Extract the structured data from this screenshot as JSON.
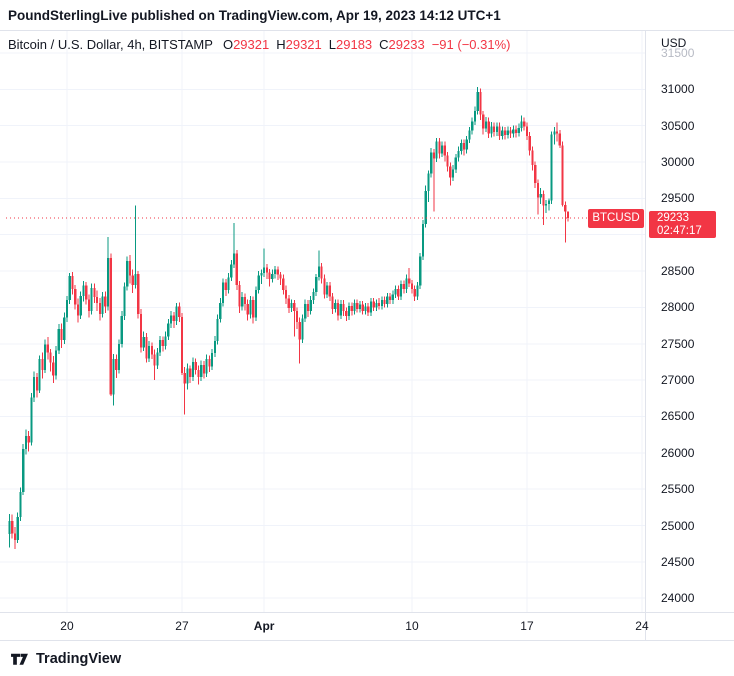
{
  "attribution": {
    "text": "PoundSterlingLive published on TradingView.com, Apr 19, 2023 14:12 UTC+1"
  },
  "legend": {
    "title": "Bitcoin / U.S. Dollar, 4h, BITSTAMP",
    "ohlc": [
      {
        "label": "O",
        "value": "29321"
      },
      {
        "label": "H",
        "value": "29321"
      },
      {
        "label": "L",
        "value": "29183"
      },
      {
        "label": "C",
        "value": "29233"
      }
    ],
    "change": "−91 (−0.31%)"
  },
  "price_scale": {
    "currency_label": "USD",
    "ticks": [
      31500,
      31000,
      30500,
      30000,
      29500,
      28500,
      28000,
      27500,
      27000,
      26500,
      26000,
      25500,
      25000,
      24500,
      24000
    ],
    "symbol_label": "BTCUSD",
    "last_price_label": "29233",
    "countdown": "02:47:17"
  },
  "time_scale": {
    "ticks": [
      {
        "label": "20",
        "index": 21,
        "bold": false
      },
      {
        "label": "27",
        "index": 63,
        "bold": false
      },
      {
        "label": "Apr",
        "index": 93,
        "bold": true
      },
      {
        "label": "10",
        "index": 147,
        "bold": false
      },
      {
        "label": "17",
        "index": 189,
        "bold": false
      },
      {
        "label": "24",
        "index": 231,
        "bold": false
      }
    ]
  },
  "footer": {
    "brand": "TradingView"
  },
  "colors": {
    "up": "#089981",
    "down": "#f23645",
    "accent_red": "#f23645",
    "text": "#131722",
    "grid": "#f0f3fa",
    "border": "#e0e3eb"
  },
  "chart_data": {
    "type": "candlestick",
    "title": "Bitcoin / U.S. Dollar, 4h, BITSTAMP",
    "interval": "4h",
    "exchange": "BITSTAMP",
    "legend_position": "top-left",
    "grid": true,
    "y_axis": {
      "label": "USD",
      "min": 24000,
      "max": 31500,
      "tick_step": 500
    },
    "x_axis": {
      "start": "Mar 16 2023 12:00 UTC",
      "interval_hours": 4,
      "labels": [
        "20",
        "27",
        "Apr",
        "10",
        "17",
        "24"
      ]
    },
    "last_price": 29233,
    "current_candle": {
      "open": 29321,
      "high": 29321,
      "low": 29183,
      "close": 29233,
      "change": -91,
      "change_pct": -0.31
    },
    "candles": [
      [
        24880,
        25160,
        24700,
        25060
      ],
      [
        25060,
        25150,
        24820,
        24890
      ],
      [
        24890,
        24980,
        24680,
        24800
      ],
      [
        24800,
        25180,
        24760,
        25120
      ],
      [
        25120,
        25520,
        25060,
        25460
      ],
      [
        25460,
        26120,
        25420,
        26050
      ],
      [
        26050,
        26320,
        25980,
        26230
      ],
      [
        26230,
        26300,
        26020,
        26140
      ],
      [
        26140,
        26820,
        26100,
        26760
      ],
      [
        26760,
        27120,
        26700,
        27040
      ],
      [
        27040,
        27100,
        26760,
        26860
      ],
      [
        26860,
        27340,
        26820,
        27290
      ],
      [
        27290,
        27380,
        27020,
        27140
      ],
      [
        27140,
        27560,
        27100,
        27490
      ],
      [
        27490,
        27590,
        27280,
        27380
      ],
      [
        27380,
        27430,
        27120,
        27240
      ],
      [
        27240,
        27330,
        26960,
        27060
      ],
      [
        27060,
        27470,
        27010,
        27410
      ],
      [
        27410,
        27770,
        27360,
        27700
      ],
      [
        27700,
        27780,
        27440,
        27550
      ],
      [
        27550,
        27930,
        27500,
        27860
      ],
      [
        27860,
        28160,
        27800,
        28100
      ],
      [
        28100,
        28470,
        28050,
        28430
      ],
      [
        28430,
        28490,
        28180,
        28250
      ],
      [
        28250,
        28310,
        27970,
        28040
      ],
      [
        28040,
        28120,
        27790,
        27890
      ],
      [
        27890,
        28220,
        27840,
        28160
      ],
      [
        28160,
        28360,
        28080,
        28300
      ],
      [
        28300,
        28350,
        28040,
        28110
      ],
      [
        28110,
        28180,
        27860,
        27950
      ],
      [
        27950,
        28330,
        27900,
        28270
      ],
      [
        28270,
        28330,
        28060,
        28140
      ],
      [
        28140,
        28230,
        27950,
        28060
      ],
      [
        28060,
        28130,
        27820,
        27910
      ],
      [
        27910,
        28210,
        27860,
        28150
      ],
      [
        28150,
        28220,
        27920,
        28010
      ],
      [
        28010,
        28970,
        27960,
        28680
      ],
      [
        28680,
        28740,
        26780,
        26800
      ],
      [
        26800,
        27360,
        26650,
        27290
      ],
      [
        27290,
        27350,
        27030,
        27140
      ],
      [
        27140,
        27560,
        27090,
        27500
      ],
      [
        27500,
        27950,
        27450,
        27880
      ],
      [
        27880,
        28340,
        27830,
        28290
      ],
      [
        28290,
        28700,
        28230,
        28640
      ],
      [
        28640,
        28720,
        28330,
        28440
      ],
      [
        28440,
        28520,
        28200,
        28310
      ],
      [
        28310,
        29400,
        28260,
        28460
      ],
      [
        28460,
        28500,
        27850,
        27910
      ],
      [
        27910,
        27980,
        27380,
        27450
      ],
      [
        27450,
        27670,
        27400,
        27590
      ],
      [
        27590,
        27650,
        27240,
        27300
      ],
      [
        27300,
        27540,
        27250,
        27470
      ],
      [
        27470,
        27520,
        27290,
        27350
      ],
      [
        27350,
        27420,
        27000,
        27200
      ],
      [
        27200,
        27440,
        27150,
        27380
      ],
      [
        27380,
        27610,
        27330,
        27550
      ],
      [
        27550,
        27600,
        27390,
        27470
      ],
      [
        27470,
        27670,
        27420,
        27600
      ],
      [
        27600,
        27840,
        27550,
        27780
      ],
      [
        27780,
        27950,
        27720,
        27890
      ],
      [
        27890,
        27940,
        27720,
        27810
      ],
      [
        27810,
        28060,
        27760,
        28010
      ],
      [
        28010,
        28070,
        27800,
        27870
      ],
      [
        27870,
        27920,
        27070,
        27100
      ],
      [
        27100,
        27180,
        26530,
        26950
      ],
      [
        26950,
        27230,
        26870,
        27160
      ],
      [
        27160,
        27200,
        26960,
        27040
      ],
      [
        27040,
        27310,
        26990,
        27250
      ],
      [
        27250,
        27300,
        27080,
        27140
      ],
      [
        27140,
        27200,
        26940,
        27040
      ],
      [
        27040,
        27270,
        26990,
        27210
      ],
      [
        27210,
        27260,
        27020,
        27090
      ],
      [
        27090,
        27350,
        27040,
        27290
      ],
      [
        27290,
        27340,
        27110,
        27190
      ],
      [
        27190,
        27430,
        27140,
        27370
      ],
      [
        27370,
        27610,
        27320,
        27540
      ],
      [
        27540,
        27900,
        27490,
        27840
      ],
      [
        27840,
        28130,
        27790,
        28060
      ],
      [
        28060,
        28400,
        28010,
        28340
      ],
      [
        28340,
        28390,
        28160,
        28240
      ],
      [
        28240,
        28470,
        28190,
        28410
      ],
      [
        28410,
        28650,
        28360,
        28590
      ],
      [
        28590,
        29160,
        28540,
        28740
      ],
      [
        28740,
        28790,
        28240,
        28310
      ],
      [
        28310,
        28360,
        27920,
        28010
      ],
      [
        28010,
        28210,
        27960,
        28140
      ],
      [
        28140,
        28190,
        27960,
        28050
      ],
      [
        28050,
        28110,
        27820,
        27900
      ],
      [
        27900,
        28160,
        27850,
        28100
      ],
      [
        28100,
        28150,
        27780,
        27860
      ],
      [
        27860,
        28290,
        27810,
        28240
      ],
      [
        28240,
        28500,
        28190,
        28440
      ],
      [
        28440,
        28520,
        28320,
        28470
      ],
      [
        28470,
        28810,
        28420,
        28550
      ],
      [
        28550,
        28600,
        28390,
        28480
      ],
      [
        28480,
        28530,
        28290,
        28390
      ],
      [
        28390,
        28520,
        28340,
        28460
      ],
      [
        28460,
        28570,
        28400,
        28520
      ],
      [
        28520,
        28560,
        28380,
        28450
      ],
      [
        28450,
        28490,
        28310,
        28400
      ],
      [
        28400,
        28450,
        28180,
        28240
      ],
      [
        28240,
        28300,
        28050,
        28120
      ],
      [
        28120,
        28170,
        27920,
        27990
      ],
      [
        27990,
        28110,
        27940,
        28060
      ],
      [
        28060,
        28100,
        27600,
        27950
      ],
      [
        27950,
        28000,
        27700,
        27800
      ],
      [
        27800,
        27860,
        27230,
        27560
      ],
      [
        27560,
        27900,
        27510,
        27850
      ],
      [
        27850,
        28110,
        27800,
        28050
      ],
      [
        28050,
        28100,
        27870,
        27950
      ],
      [
        27950,
        28160,
        27900,
        28100
      ],
      [
        28100,
        28260,
        28050,
        28210
      ],
      [
        28210,
        28460,
        28160,
        28420
      ],
      [
        28420,
        28780,
        28370,
        28560
      ],
      [
        28560,
        28610,
        28330,
        28400
      ],
      [
        28400,
        28450,
        28120,
        28180
      ],
      [
        28180,
        28350,
        28130,
        28300
      ],
      [
        28300,
        28350,
        28090,
        28150
      ],
      [
        28150,
        28200,
        27910,
        27980
      ],
      [
        27980,
        28110,
        27930,
        28060
      ],
      [
        28060,
        28110,
        27820,
        27890
      ],
      [
        27890,
        28100,
        27840,
        28050
      ],
      [
        28050,
        28100,
        27880,
        27950
      ],
      [
        27950,
        28000,
        27810,
        27880
      ],
      [
        27880,
        28070,
        27830,
        28020
      ],
      [
        28020,
        28070,
        27890,
        27950
      ],
      [
        27950,
        28110,
        27900,
        28060
      ],
      [
        28060,
        28110,
        27930,
        27980
      ],
      [
        27980,
        28090,
        27930,
        28040
      ],
      [
        28040,
        28090,
        27900,
        27950
      ],
      [
        27950,
        28060,
        27900,
        28010
      ],
      [
        28010,
        28060,
        27880,
        27930
      ],
      [
        27930,
        28130,
        27880,
        28080
      ],
      [
        28080,
        28130,
        27950,
        28000
      ],
      [
        28000,
        28110,
        27950,
        28060
      ],
      [
        28060,
        28130,
        27970,
        28020
      ],
      [
        28020,
        28150,
        27970,
        28100
      ],
      [
        28100,
        28150,
        28000,
        28050
      ],
      [
        28050,
        28200,
        28000,
        28150
      ],
      [
        28150,
        28200,
        28050,
        28100
      ],
      [
        28100,
        28230,
        28050,
        28180
      ],
      [
        28180,
        28300,
        28130,
        28250
      ],
      [
        28250,
        28300,
        28100,
        28150
      ],
      [
        28150,
        28370,
        28100,
        28320
      ],
      [
        28320,
        28370,
        28190,
        28250
      ],
      [
        28250,
        28450,
        28200,
        28400
      ],
      [
        28400,
        28540,
        28280,
        28330
      ],
      [
        28330,
        28380,
        28190,
        28250
      ],
      [
        28250,
        28300,
        28090,
        28150
      ],
      [
        28150,
        28350,
        28100,
        28300
      ],
      [
        28300,
        28750,
        28250,
        28700
      ],
      [
        28700,
        29200,
        28650,
        29150
      ],
      [
        29150,
        29680,
        29100,
        29600
      ],
      [
        29600,
        29880,
        29450,
        29840
      ],
      [
        29840,
        30190,
        29790,
        30130
      ],
      [
        30130,
        30180,
        29320,
        30050
      ],
      [
        30050,
        30330,
        30000,
        30280
      ],
      [
        30280,
        30330,
        30050,
        30120
      ],
      [
        30120,
        30280,
        30070,
        30230
      ],
      [
        30230,
        30280,
        30010,
        30090
      ],
      [
        30090,
        30140,
        29870,
        29940
      ],
      [
        29940,
        29990,
        29680,
        29790
      ],
      [
        29790,
        29960,
        29740,
        29900
      ],
      [
        29900,
        30110,
        29850,
        30060
      ],
      [
        30060,
        30210,
        30010,
        30150
      ],
      [
        30150,
        30310,
        30100,
        30260
      ],
      [
        30260,
        30310,
        30090,
        30170
      ],
      [
        30170,
        30360,
        30120,
        30310
      ],
      [
        30310,
        30480,
        30260,
        30430
      ],
      [
        30430,
        30610,
        30380,
        30560
      ],
      [
        30560,
        30760,
        30510,
        30700
      ],
      [
        30700,
        31030,
        30650,
        30960
      ],
      [
        30960,
        31010,
        30580,
        30650
      ],
      [
        30650,
        30700,
        30380,
        30460
      ],
      [
        30460,
        30620,
        30410,
        30560
      ],
      [
        30560,
        30610,
        30330,
        30390
      ],
      [
        30390,
        30550,
        30340,
        30490
      ],
      [
        30490,
        30540,
        30350,
        30410
      ],
      [
        30410,
        30540,
        30360,
        30490
      ],
      [
        30490,
        30540,
        30300,
        30360
      ],
      [
        30360,
        30490,
        30310,
        30430
      ],
      [
        30430,
        30480,
        30310,
        30370
      ],
      [
        30370,
        30490,
        30320,
        30430
      ],
      [
        30430,
        30480,
        30330,
        30390
      ],
      [
        30390,
        30500,
        30340,
        30450
      ],
      [
        30450,
        30500,
        30340,
        30400
      ],
      [
        30400,
        30530,
        30350,
        30470
      ],
      [
        30470,
        30640,
        30420,
        30560
      ],
      [
        30560,
        30610,
        30430,
        30490
      ],
      [
        30490,
        30540,
        30300,
        30360
      ],
      [
        30360,
        30410,
        30090,
        30160
      ],
      [
        30160,
        30210,
        29880,
        29960
      ],
      [
        29960,
        30010,
        29640,
        29710
      ],
      [
        29710,
        29760,
        29280,
        29510
      ],
      [
        29510,
        29640,
        29420,
        29560
      ],
      [
        29560,
        29610,
        29130,
        29400
      ],
      [
        29400,
        29480,
        29300,
        29420
      ],
      [
        29420,
        29500,
        29330,
        29470
      ],
      [
        29470,
        30420,
        29420,
        30380
      ],
      [
        30380,
        30480,
        30240,
        30420
      ],
      [
        30420,
        30540,
        30280,
        30390
      ],
      [
        30390,
        30440,
        30190,
        30230
      ],
      [
        30230,
        30280,
        29390,
        29410
      ],
      [
        29410,
        29460,
        28890,
        29321
      ],
      [
        29321,
        29321,
        29183,
        29233
      ]
    ]
  }
}
